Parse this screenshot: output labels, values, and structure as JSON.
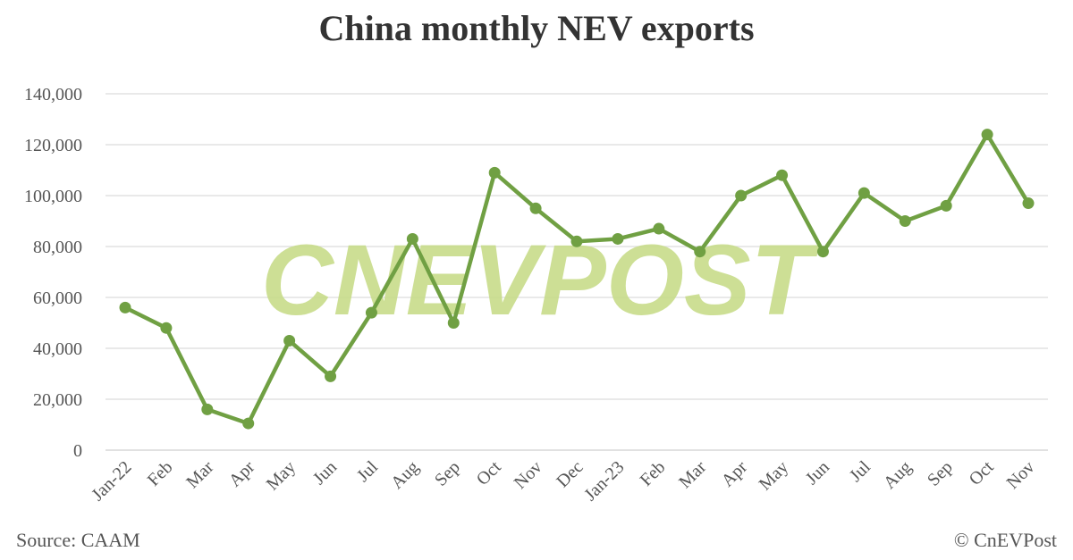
{
  "chart_data": {
    "type": "line",
    "title": "China monthly NEV exports",
    "xlabel": "",
    "ylabel": "",
    "categories": [
      "Jan-22",
      "Feb",
      "Mar",
      "Apr",
      "May",
      "Jun",
      "Jul",
      "Aug",
      "Sep",
      "Oct",
      "Nov",
      "Dec",
      "Jan-23",
      "Feb",
      "Mar",
      "Apr",
      "May",
      "Jun",
      "Jul",
      "Aug",
      "Sep",
      "Oct",
      "Nov"
    ],
    "series": [
      {
        "values": [
          56000,
          48000,
          16000,
          10500,
          43000,
          29000,
          54000,
          83000,
          50000,
          109000,
          95000,
          82000,
          83000,
          87000,
          78000,
          100000,
          108000,
          78000,
          101000,
          90000,
          96000,
          124000,
          97000
        ]
      }
    ],
    "ylim": [
      0,
      140000
    ],
    "yticks": [
      "0",
      "20,000",
      "40,000",
      "60,000",
      "80,000",
      "100,000",
      "120,000",
      "140,000"
    ],
    "grid": true,
    "line_color": "#70a043"
  },
  "footer": {
    "source": "Source: CAAM",
    "credit": "© CnEVPost"
  },
  "watermark": "CNEVPOST"
}
